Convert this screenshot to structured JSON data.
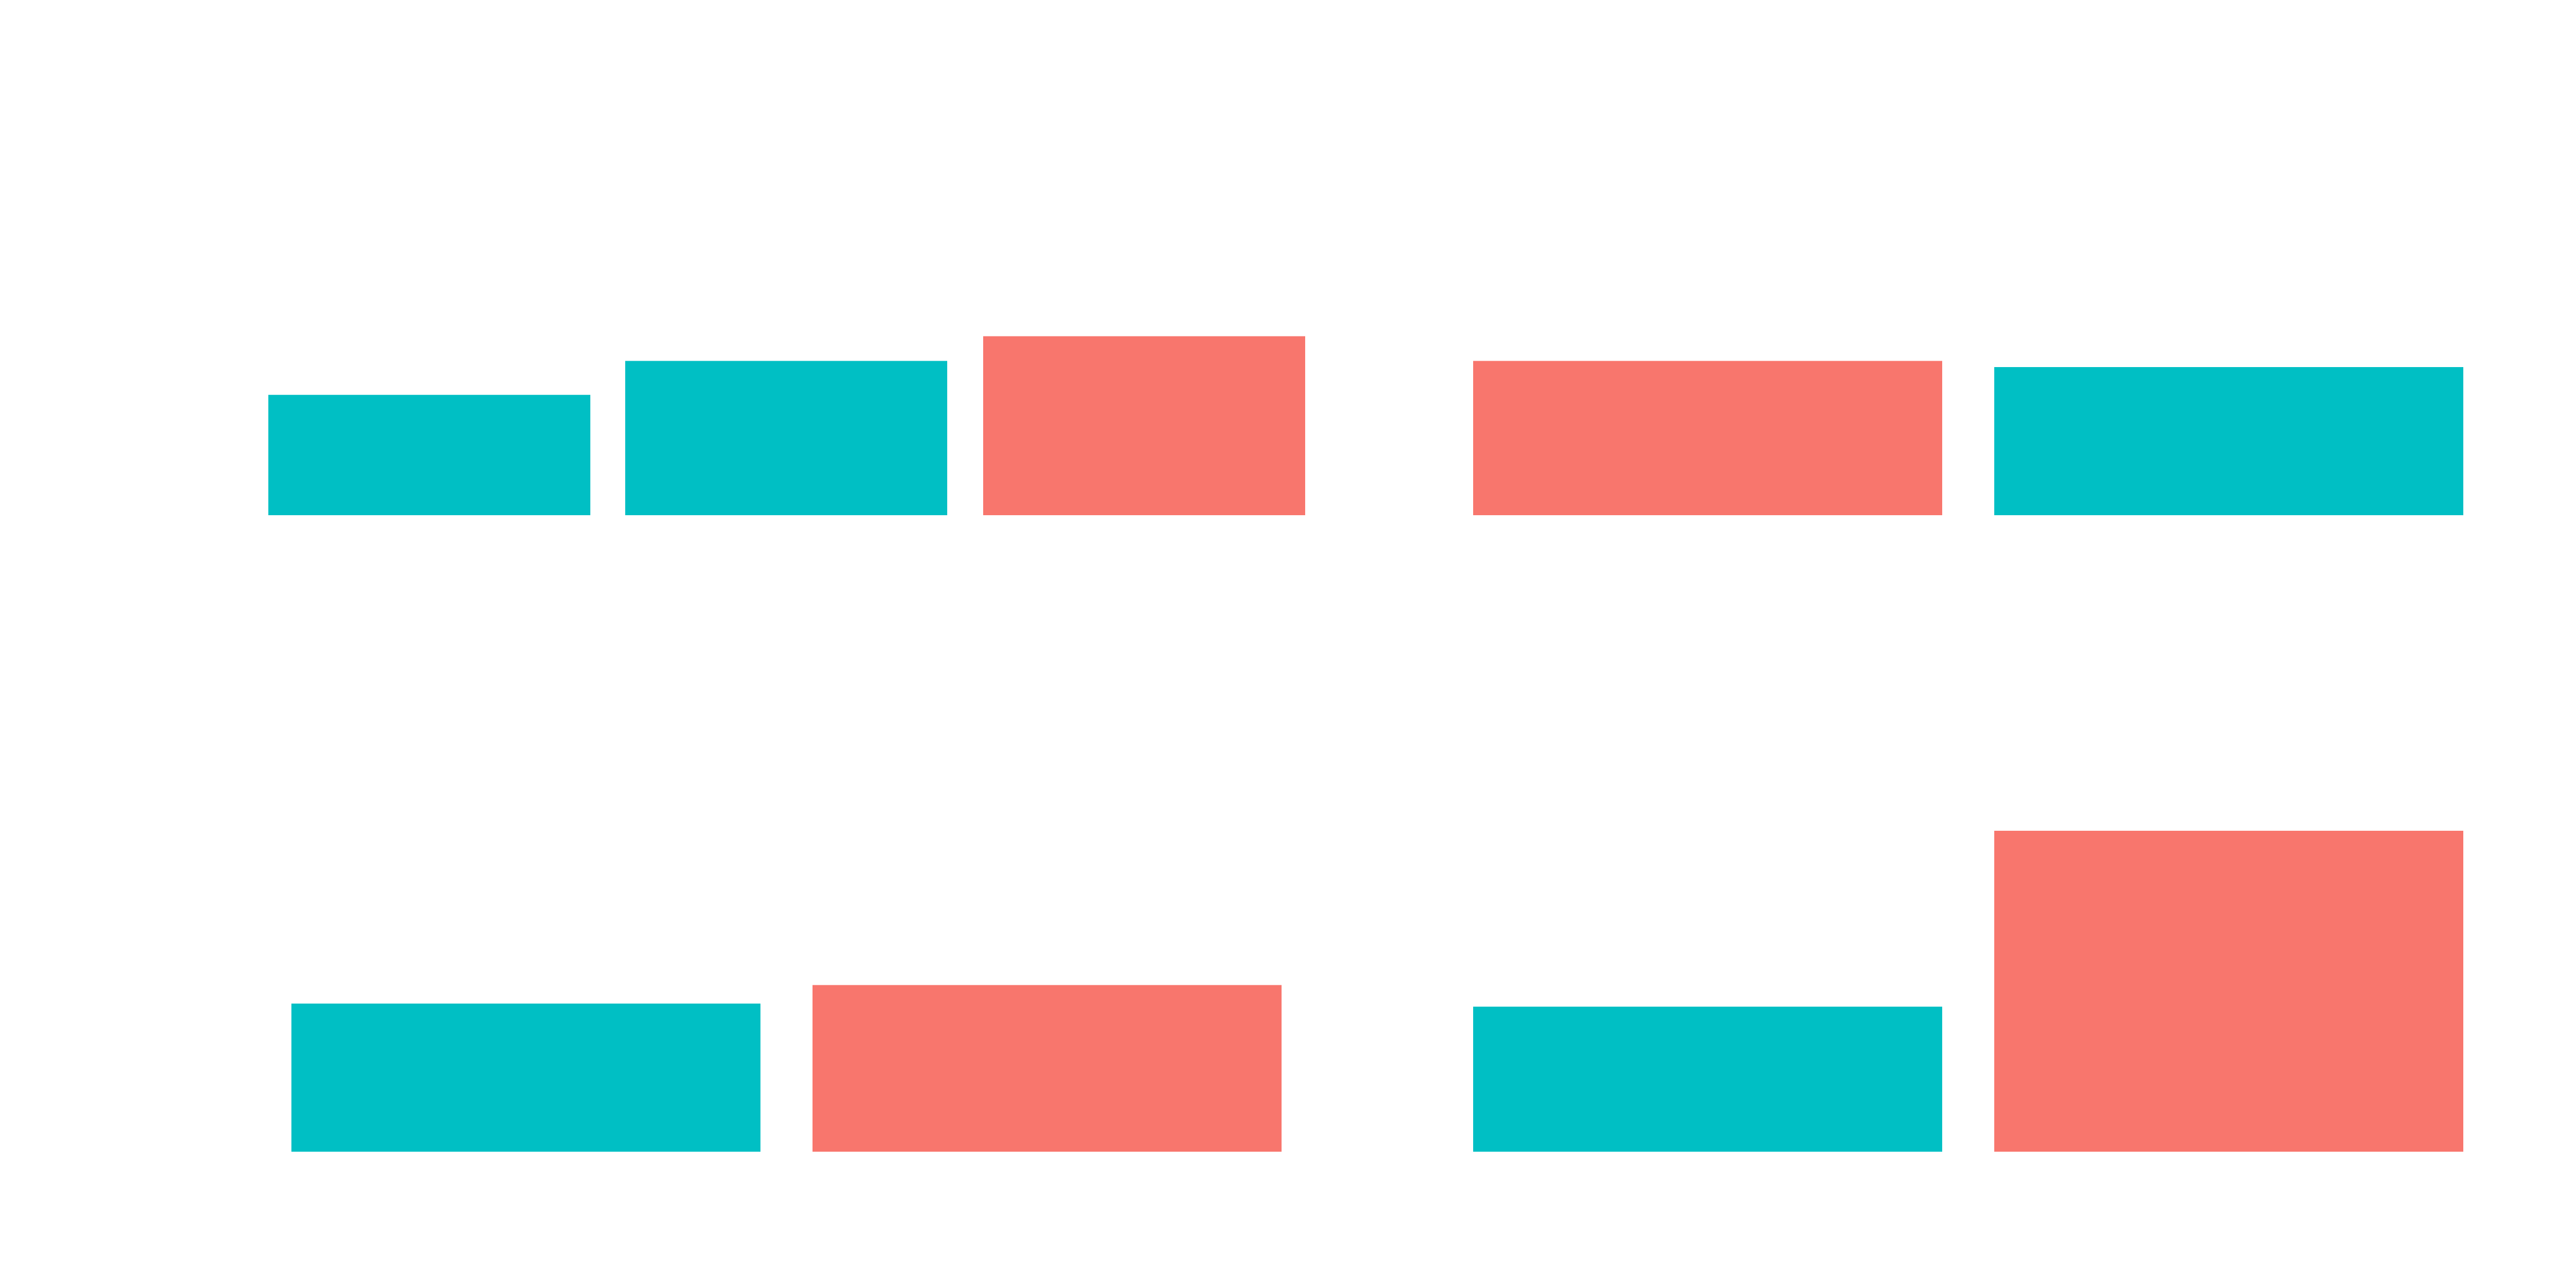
{
  "colors": {
    "teal": "#00BFC4",
    "salmon": "#F8766D",
    "background": "#FFFFFF"
  },
  "chart_data": [
    {
      "type": "bar",
      "panel": "top-left",
      "grid": false,
      "legend": "none",
      "ylim": [
        0,
        1
      ],
      "bars": [
        {
          "value": 0.195,
          "color": "teal"
        },
        {
          "value": 0.25,
          "color": "teal"
        },
        {
          "value": 0.29,
          "color": "salmon"
        }
      ]
    },
    {
      "type": "bar",
      "panel": "top-right",
      "grid": false,
      "legend": "none",
      "ylim": [
        0,
        1
      ],
      "bars": [
        {
          "value": 0.25,
          "color": "salmon"
        },
        {
          "value": 0.24,
          "color": "teal"
        }
      ]
    },
    {
      "type": "bar",
      "panel": "bottom-left",
      "grid": false,
      "legend": "none",
      "ylim": [
        0,
        1
      ],
      "bars": [
        {
          "value": 0.24,
          "color": "teal"
        },
        {
          "value": 0.27,
          "color": "salmon"
        }
      ]
    },
    {
      "type": "bar",
      "panel": "bottom-right",
      "grid": false,
      "legend": "none",
      "ylim": [
        0,
        1
      ],
      "bars": [
        {
          "value": 0.235,
          "color": "teal"
        },
        {
          "value": 0.52,
          "color": "salmon"
        }
      ]
    }
  ]
}
